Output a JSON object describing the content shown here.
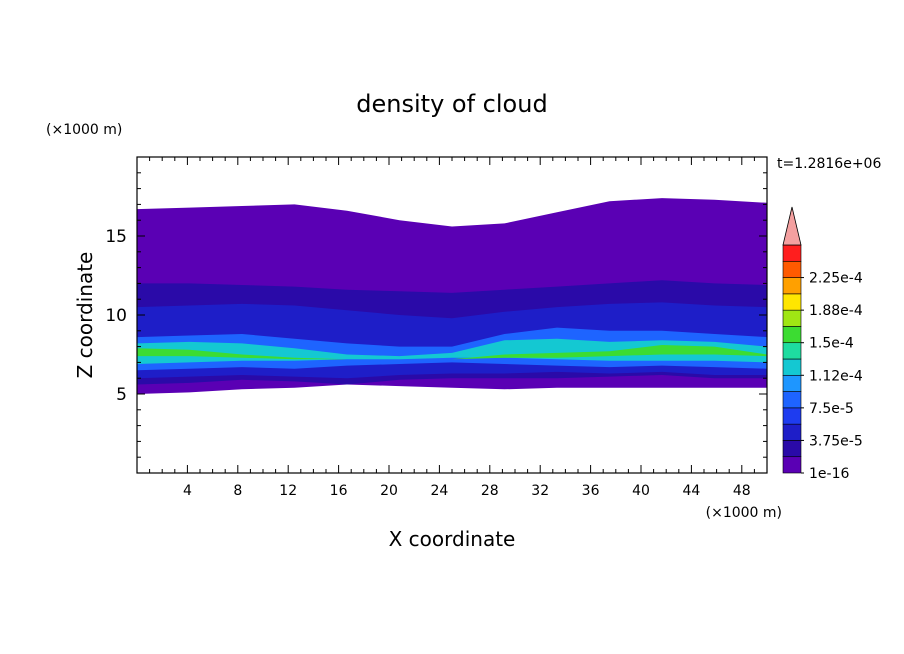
{
  "chart_data": {
    "type": "heatmap",
    "title": "density of cloud",
    "xlabel": "X coordinate",
    "ylabel": "Z coordinate",
    "x_unit": "(×1000 m)",
    "y_unit": "(×1000 m)",
    "time_label": "t=1.2816e+06",
    "xlim": [
      0,
      50
    ],
    "ylim": [
      0,
      20
    ],
    "x_ticks": [
      "4",
      "8",
      "12",
      "16",
      "20",
      "24",
      "28",
      "32",
      "36",
      "40",
      "44",
      "48"
    ],
    "y_ticks": [
      "5",
      "10",
      "15"
    ],
    "colorbar": {
      "labels": [
        "1e-16",
        "3.75e-5",
        "7.5e-5",
        "1.12e-4",
        "1.5e-4",
        "1.88e-4",
        "2.25e-4"
      ],
      "levels": [
        1e-16,
        1.875e-05,
        3.75e-05,
        5.625e-05,
        7.5e-05,
        9.375e-05,
        0.0001125,
        0.00013125,
        0.00015,
        0.00016875,
        0.0001875,
        0.00020625,
        0.000225,
        0.00024375
      ],
      "colors": [
        "#5a00b4",
        "#2a0aa8",
        "#1e1ec8",
        "#1e3cf0",
        "#1e64ff",
        "#1e96ff",
        "#14c8d2",
        "#1edca0",
        "#3cdc32",
        "#a0e614",
        "#ffe600",
        "#ffa000",
        "#ff5a00",
        "#ff1e1e"
      ],
      "extend_top_color": "#f4a0a0"
    },
    "cloud_layers": [
      {
        "level": 1e-16,
        "top_km": [
          16.7,
          16.8,
          16.9,
          17.0,
          16.6,
          16.0,
          15.6,
          15.8,
          16.5,
          17.2,
          17.4,
          17.3,
          17.1
        ],
        "bottom_km": [
          5.0,
          5.1,
          5.3,
          5.4,
          5.6,
          5.5,
          5.4,
          5.3,
          5.4,
          5.4,
          5.4,
          5.4,
          5.4
        ]
      },
      {
        "level": 1.875e-05,
        "top_km": [
          12.0,
          12.0,
          11.9,
          11.8,
          11.6,
          11.5,
          11.4,
          11.6,
          11.8,
          12.0,
          12.2,
          12.0,
          11.9
        ],
        "bottom_km": [
          5.6,
          5.7,
          5.9,
          5.8,
          5.6,
          5.9,
          6.0,
          6.0,
          6.0,
          6.1,
          6.2,
          6.0,
          6.0
        ]
      },
      {
        "level": 3.75e-05,
        "top_km": [
          10.5,
          10.6,
          10.7,
          10.6,
          10.3,
          10.0,
          9.8,
          10.2,
          10.5,
          10.7,
          10.8,
          10.6,
          10.5
        ],
        "bottom_km": [
          6.0,
          6.1,
          6.2,
          6.1,
          6.0,
          6.2,
          6.3,
          6.3,
          6.4,
          6.3,
          6.4,
          6.2,
          6.2
        ]
      },
      {
        "level": 7.5e-05,
        "top_km": [
          8.6,
          8.7,
          8.8,
          8.5,
          8.2,
          8.0,
          8.0,
          8.8,
          9.2,
          9.0,
          9.0,
          8.8,
          8.6
        ],
        "bottom_km": [
          6.5,
          6.6,
          6.7,
          6.6,
          6.8,
          6.9,
          7.0,
          6.9,
          6.8,
          6.7,
          6.8,
          6.7,
          6.6
        ]
      },
      {
        "level": 0.0001125,
        "top_km": [
          8.2,
          8.3,
          8.2,
          7.9,
          7.5,
          7.4,
          7.6,
          8.4,
          8.5,
          8.3,
          8.4,
          8.3,
          8.0
        ],
        "bottom_km": [
          6.9,
          7.0,
          7.1,
          7.1,
          7.2,
          7.2,
          7.3,
          7.3,
          7.2,
          7.1,
          7.1,
          7.1,
          7.0
        ]
      },
      {
        "level": 0.00015,
        "top_km": [
          7.9,
          7.8,
          7.5,
          7.3,
          7.2,
          7.2,
          7.2,
          7.5,
          7.6,
          7.7,
          8.1,
          8.0,
          7.5
        ],
        "bottom_km": [
          7.4,
          7.4,
          7.3,
          7.2,
          7.2,
          7.2,
          7.2,
          7.3,
          7.3,
          7.4,
          7.5,
          7.5,
          7.4
        ]
      }
    ]
  }
}
